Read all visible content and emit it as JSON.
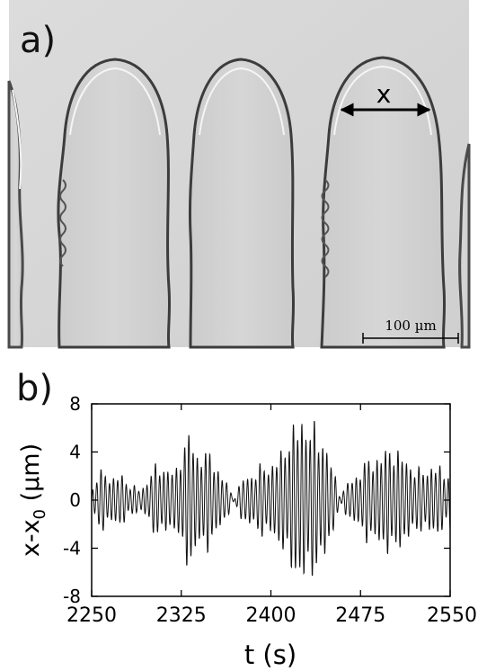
{
  "panel_a": {
    "label": "a)",
    "arrow_label": "x",
    "scale_bar_label": "100 µm"
  },
  "panel_b": {
    "label": "b)",
    "chart_data": {
      "type": "line",
      "title": "",
      "xlabel": "t (s)",
      "ylabel_main": "x-x",
      "ylabel_sub": "0",
      "ylabel_unit": " (µm)",
      "xlim": [
        2250,
        2550
      ],
      "ylim": [
        -8,
        8
      ],
      "xticks": [
        2250,
        2325,
        2400,
        2475,
        2550
      ],
      "yticks": [
        8,
        4,
        0,
        -4,
        -8
      ],
      "grid": false,
      "series": [
        {
          "period_s": 3.5,
          "envelope": {
            "t": [
              2250,
              2255,
              2270,
              2280,
              2290,
              2300,
              2310,
              2320,
              2327,
              2333,
              2338,
              2345,
              2352,
              2360,
              2368,
              2378,
              2390,
              2400,
              2410,
              2418,
              2424,
              2430,
              2436,
              2442,
              2447,
              2452,
              2458,
              2468,
              2478,
              2488,
              2496,
              2503,
              2515,
              2525,
              2535,
              2545,
              2550
            ],
            "amplitude": [
              1.0,
              2.4,
              2.0,
              1.8,
              0.5,
              2.6,
              3.0,
              2.2,
              5.0,
              6.0,
              3.8,
              4.3,
              3.6,
              1.8,
              0.4,
              1.8,
              2.8,
              3.0,
              4.2,
              6.2,
              7.0,
              6.4,
              6.5,
              5.2,
              4.6,
              2.4,
              0.7,
              1.6,
              3.2,
              3.6,
              4.3,
              4.5,
              3.3,
              2.4,
              3.0,
              2.5,
              2.6
            ]
          }
        }
      ]
    }
  }
}
